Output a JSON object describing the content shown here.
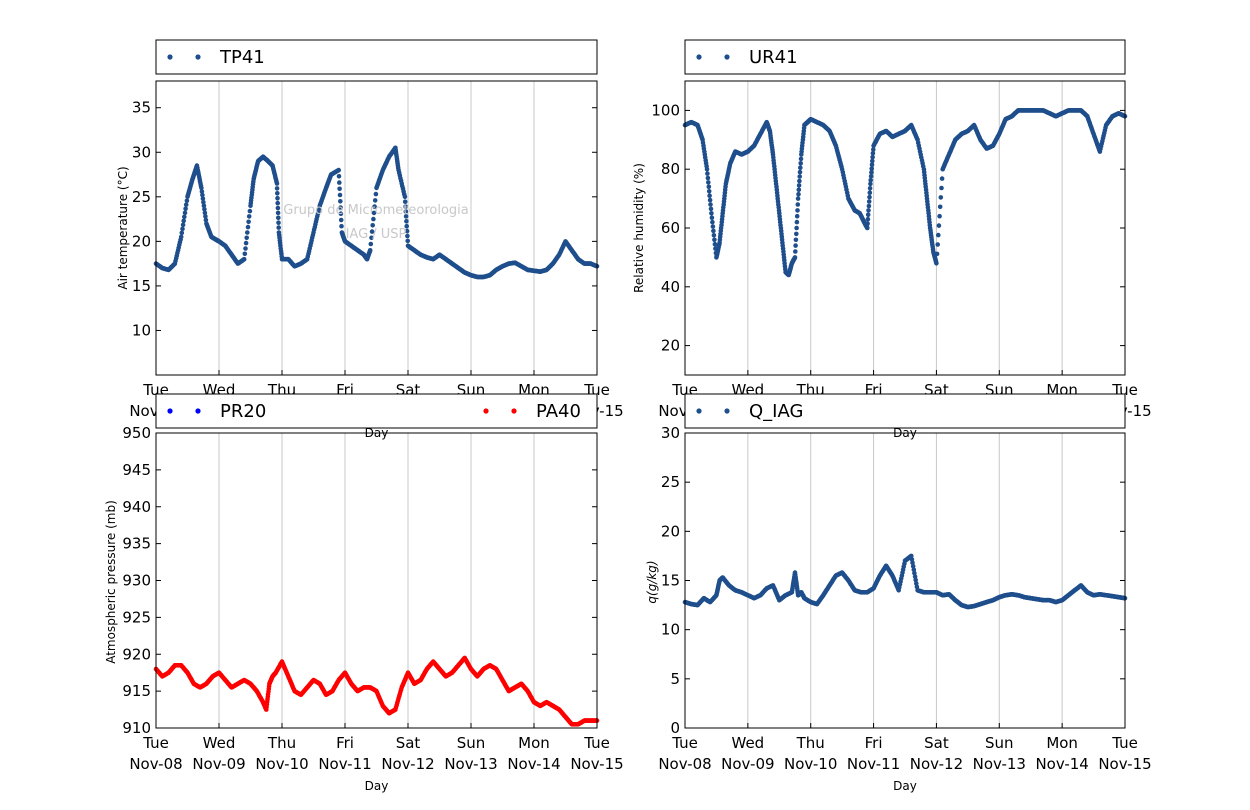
{
  "watermark": {
    "line1": "Grupo de Micrometeorologia",
    "line2": "IAG / USP"
  },
  "x_axis": {
    "day_names": [
      "Tue",
      "Wed",
      "Thu",
      "Fri",
      "Sat",
      "Sun",
      "Mon",
      "Tue"
    ],
    "dates": [
      "Nov-08",
      "Nov-09",
      "Nov-10",
      "Nov-11",
      "Nov-12",
      "Nov-13",
      "Nov-14",
      "Nov-15"
    ],
    "label": "Day"
  },
  "chart_data": [
    {
      "type": "scatter",
      "legend": [
        "TP41"
      ],
      "ylabel": "Air temperature (°C)",
      "xlabel": "Day",
      "xlim": [
        "Nov-08",
        "Nov-15"
      ],
      "ylim": [
        5,
        38
      ],
      "yticks": [
        10,
        15,
        20,
        25,
        30,
        35
      ],
      "grid": "vertical",
      "legend_position": "top",
      "series": [
        {
          "name": "TP41",
          "color": "#1f4e8c",
          "x": [
            0,
            0.1,
            0.2,
            0.3,
            0.4,
            0.5,
            0.58,
            0.65,
            0.72,
            0.8,
            0.88,
            0.95,
            1.0,
            1.1,
            1.2,
            1.3,
            1.4,
            1.5,
            1.55,
            1.62,
            1.7,
            1.78,
            1.85,
            1.92,
            1.95,
            2.0,
            2.1,
            2.2,
            2.3,
            2.4,
            2.5,
            2.6,
            2.7,
            2.78,
            2.9,
            2.95,
            3.0,
            3.1,
            3.2,
            3.3,
            3.35,
            3.4,
            3.5,
            3.6,
            3.7,
            3.8,
            3.85,
            3.95,
            4.0,
            4.1,
            4.2,
            4.3,
            4.4,
            4.5,
            4.6,
            4.7,
            4.8,
            4.9,
            5.0,
            5.1,
            5.2,
            5.3,
            5.4,
            5.5,
            5.6,
            5.7,
            5.8,
            5.9,
            6.0,
            6.1,
            6.2,
            6.3,
            6.4,
            6.5,
            6.6,
            6.7,
            6.8,
            6.9,
            7.0
          ],
          "y": [
            17.5,
            17.0,
            16.8,
            17.5,
            20.5,
            25.0,
            27.0,
            28.5,
            26.0,
            22.0,
            20.5,
            20.2,
            20.0,
            19.5,
            18.5,
            17.5,
            18.0,
            24.0,
            27.0,
            29.0,
            29.5,
            29.0,
            28.5,
            26.5,
            21.0,
            18.0,
            18.0,
            17.2,
            17.5,
            18.0,
            21.0,
            24.0,
            26.0,
            27.5,
            28.0,
            21.0,
            20.0,
            19.5,
            19.0,
            18.5,
            18.0,
            19.0,
            26.0,
            28.0,
            29.5,
            30.5,
            28.0,
            25.0,
            19.5,
            19.0,
            18.5,
            18.2,
            18.0,
            18.5,
            18.0,
            17.5,
            17.0,
            16.5,
            16.2,
            16.0,
            16.0,
            16.2,
            16.8,
            17.2,
            17.5,
            17.6,
            17.2,
            16.8,
            16.7,
            16.6,
            16.8,
            17.5,
            18.5,
            20.0,
            19.0,
            18.0,
            17.5,
            17.5,
            17.2
          ]
        }
      ]
    },
    {
      "type": "scatter",
      "legend": [
        "UR41"
      ],
      "ylabel": "Relative humidity (%)",
      "xlabel": "Day",
      "xlim": [
        "Nov-08",
        "Nov-15"
      ],
      "ylim": [
        10,
        110
      ],
      "yticks": [
        20,
        40,
        60,
        80,
        100
      ],
      "grid": "vertical",
      "legend_position": "top",
      "series": [
        {
          "name": "UR41",
          "color": "#1f4e8c",
          "x": [
            0,
            0.1,
            0.2,
            0.28,
            0.35,
            0.42,
            0.5,
            0.55,
            0.6,
            0.65,
            0.72,
            0.8,
            0.9,
            1.0,
            1.1,
            1.2,
            1.3,
            1.35,
            1.4,
            1.45,
            1.5,
            1.55,
            1.6,
            1.65,
            1.7,
            1.75,
            1.8,
            1.85,
            1.9,
            1.95,
            2.0,
            2.1,
            2.2,
            2.3,
            2.4,
            2.5,
            2.6,
            2.7,
            2.78,
            2.85,
            2.9,
            2.95,
            3.0,
            3.1,
            3.2,
            3.3,
            3.4,
            3.5,
            3.6,
            3.7,
            3.8,
            3.85,
            3.9,
            3.95,
            4.0,
            4.1,
            4.2,
            4.3,
            4.4,
            4.5,
            4.6,
            4.7,
            4.8,
            4.9,
            5.0,
            5.1,
            5.2,
            5.3,
            5.4,
            5.5,
            5.6,
            5.7,
            5.8,
            5.9,
            6.0,
            6.1,
            6.2,
            6.3,
            6.4,
            6.5,
            6.6,
            6.7,
            6.8,
            6.9,
            7.0
          ],
          "y": [
            95,
            96,
            95,
            90,
            80,
            65,
            50,
            55,
            65,
            75,
            82,
            86,
            85,
            86,
            88,
            92,
            96,
            93,
            85,
            75,
            65,
            55,
            45,
            44,
            48,
            50,
            70,
            85,
            95,
            96,
            97,
            96,
            95,
            93,
            88,
            80,
            70,
            66,
            65,
            62,
            60,
            75,
            88,
            92,
            93,
            91,
            92,
            93,
            95,
            90,
            80,
            70,
            60,
            52,
            48,
            80,
            85,
            90,
            92,
            93,
            95,
            90,
            87,
            88,
            92,
            97,
            98,
            100,
            100,
            100,
            100,
            100,
            99,
            98,
            99,
            100,
            100,
            100,
            98,
            92,
            86,
            95,
            98,
            99,
            98
          ]
        }
      ]
    },
    {
      "type": "scatter",
      "legend": [
        "PR20",
        "PA40"
      ],
      "ylabel": "Atmospheric pressure (mb)",
      "xlabel": "Day",
      "xlim": [
        "Nov-08",
        "Nov-15"
      ],
      "ylim": [
        910,
        950
      ],
      "yticks": [
        910,
        915,
        920,
        925,
        930,
        935,
        940,
        945,
        950
      ],
      "grid": "vertical",
      "legend_position": "top",
      "series": [
        {
          "name": "PR20",
          "color": "#0000ff",
          "x": [],
          "y": []
        },
        {
          "name": "PA40",
          "color": "#ff0000",
          "x": [
            0,
            0.1,
            0.2,
            0.3,
            0.4,
            0.5,
            0.6,
            0.7,
            0.8,
            0.9,
            1.0,
            1.1,
            1.2,
            1.3,
            1.4,
            1.5,
            1.6,
            1.7,
            1.75,
            1.8,
            1.85,
            1.9,
            2.0,
            2.1,
            2.2,
            2.3,
            2.4,
            2.5,
            2.6,
            2.7,
            2.8,
            2.9,
            3.0,
            3.1,
            3.2,
            3.3,
            3.4,
            3.5,
            3.6,
            3.7,
            3.8,
            3.9,
            4.0,
            4.1,
            4.2,
            4.3,
            4.4,
            4.5,
            4.6,
            4.7,
            4.8,
            4.9,
            5.0,
            5.1,
            5.2,
            5.3,
            5.4,
            5.5,
            5.6,
            5.7,
            5.8,
            5.9,
            6.0,
            6.1,
            6.2,
            6.3,
            6.4,
            6.5,
            6.6,
            6.7,
            6.8,
            6.9,
            7.0
          ],
          "y": [
            918,
            917,
            917.5,
            918.5,
            918.5,
            917.5,
            916,
            915.5,
            916,
            917,
            917.5,
            916.5,
            915.5,
            916,
            916.5,
            916,
            915,
            913.5,
            912.5,
            916,
            917,
            917.5,
            919,
            917,
            915,
            914.5,
            915.5,
            916.5,
            916,
            914.5,
            915,
            916.5,
            917.5,
            916,
            915,
            915.5,
            915.5,
            915,
            913,
            912,
            912.5,
            915.5,
            917.5,
            916,
            916.5,
            918,
            919,
            918,
            917,
            917.5,
            918.5,
            919.5,
            918,
            917,
            918,
            918.5,
            918,
            916.5,
            915,
            915.5,
            916,
            915,
            913.5,
            913,
            913.5,
            913,
            912.5,
            911.5,
            910.5,
            910.5,
            911,
            911,
            911
          ]
        }
      ]
    },
    {
      "type": "scatter",
      "legend": [
        "Q_IAG"
      ],
      "ylabel": "q(g/kg)",
      "xlabel": "Day",
      "xlim": [
        "Nov-08",
        "Nov-15"
      ],
      "ylim": [
        0,
        30
      ],
      "yticks": [
        0,
        5,
        10,
        15,
        20,
        25,
        30
      ],
      "grid": "vertical",
      "legend_position": "top",
      "series": [
        {
          "name": "Q_IAG",
          "color": "#1f4e8c",
          "x": [
            0,
            0.1,
            0.2,
            0.3,
            0.4,
            0.5,
            0.55,
            0.6,
            0.7,
            0.8,
            0.9,
            1.0,
            1.1,
            1.2,
            1.3,
            1.4,
            1.5,
            1.6,
            1.7,
            1.75,
            1.8,
            1.85,
            1.9,
            2.0,
            2.1,
            2.2,
            2.3,
            2.4,
            2.5,
            2.6,
            2.7,
            2.8,
            2.9,
            3.0,
            3.1,
            3.2,
            3.3,
            3.4,
            3.5,
            3.6,
            3.7,
            3.8,
            3.9,
            4.0,
            4.1,
            4.2,
            4.3,
            4.4,
            4.5,
            4.6,
            4.7,
            4.8,
            4.9,
            5.0,
            5.1,
            5.2,
            5.3,
            5.4,
            5.5,
            5.6,
            5.7,
            5.8,
            5.9,
            6.0,
            6.1,
            6.2,
            6.3,
            6.4,
            6.5,
            6.6,
            6.7,
            6.8,
            6.9,
            7.0
          ],
          "y": [
            12.8,
            12.6,
            12.5,
            13.2,
            12.8,
            13.5,
            15.0,
            15.3,
            14.5,
            14.0,
            13.8,
            13.5,
            13.2,
            13.5,
            14.2,
            14.5,
            13.0,
            13.5,
            13.8,
            15.8,
            13.5,
            13.8,
            13.2,
            12.8,
            12.6,
            13.5,
            14.5,
            15.5,
            15.8,
            15.0,
            14.0,
            13.8,
            13.8,
            14.2,
            15.5,
            16.5,
            15.5,
            14.0,
            17.0,
            17.5,
            14.0,
            13.8,
            13.8,
            13.8,
            13.5,
            13.6,
            13.0,
            12.5,
            12.3,
            12.4,
            12.6,
            12.8,
            13.0,
            13.3,
            13.5,
            13.6,
            13.5,
            13.3,
            13.2,
            13.1,
            13.0,
            13.0,
            12.8,
            13.0,
            13.5,
            14.0,
            14.5,
            13.8,
            13.5,
            13.6,
            13.5,
            13.4,
            13.3,
            13.2
          ]
        }
      ]
    }
  ]
}
